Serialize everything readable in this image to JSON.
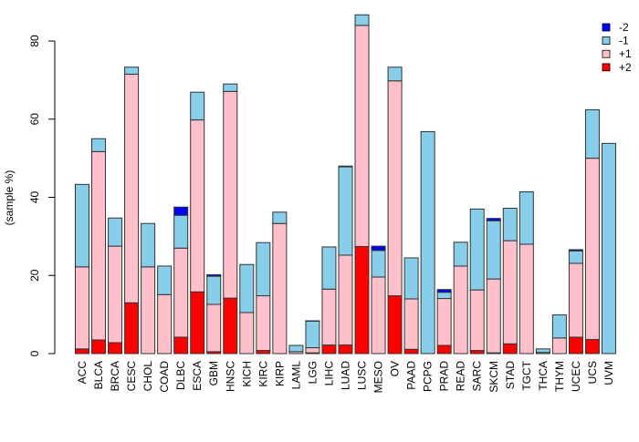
{
  "chart_data": {
    "type": "bar",
    "stacked": true,
    "title": "",
    "xlabel": "",
    "ylabel": "(sample %)",
    "ylim": [
      0,
      85
    ],
    "yticks": [
      0,
      20,
      40,
      60,
      80
    ],
    "grid": false,
    "legend_position": "top-right",
    "categories": [
      "ACC",
      "BLCA",
      "BRCA",
      "CESC",
      "CHOL",
      "COAD",
      "DLBC",
      "ESCA",
      "GBM",
      "HNSC",
      "KICH",
      "KIRC",
      "KIRP",
      "LAML",
      "LGG",
      "LIHC",
      "LUAD",
      "LUSC",
      "MESO",
      "OV",
      "PAAD",
      "PCPG",
      "PRAD",
      "READ",
      "SARC",
      "SKCM",
      "STAD",
      "TGCT",
      "THCA",
      "THYM",
      "UCEC",
      "UCS",
      "UVM"
    ],
    "series": [
      {
        "name": "+2",
        "color": "#ff0000",
        "values": [
          1.2,
          3.5,
          2.8,
          13.0,
          0,
          0,
          4.2,
          15.8,
          0.5,
          14.2,
          0,
          0.8,
          0,
          0,
          0.2,
          2.2,
          2.2,
          27.4,
          0,
          14.8,
          1.1,
          0,
          2.1,
          0,
          0.8,
          0.2,
          2.5,
          0,
          0,
          0,
          4.2,
          3.6,
          0
        ]
      },
      {
        "name": "+1",
        "color": "#ffc0cb",
        "values": [
          21.0,
          48.2,
          24.7,
          58.5,
          22.2,
          15.1,
          22.8,
          44.0,
          12.1,
          52.9,
          10.5,
          14.0,
          33.3,
          0.5,
          1.3,
          14.3,
          23.0,
          56.6,
          19.6,
          55.0,
          12.9,
          0,
          12.0,
          22.4,
          15.5,
          18.9,
          26.4,
          28.0,
          0.3,
          4.0,
          18.9,
          46.4,
          0
        ]
      },
      {
        "name": "-1",
        "color": "#87ceeb",
        "values": [
          21.1,
          3.3,
          7.2,
          1.8,
          11.1,
          7.3,
          8.4,
          7.1,
          7.2,
          1.9,
          12.3,
          13.6,
          2.9,
          1.6,
          6.8,
          10.8,
          22.6,
          2.7,
          6.8,
          3.5,
          10.5,
          56.8,
          1.6,
          6.1,
          20.7,
          14.9,
          8.3,
          13.4,
          0.9,
          5.9,
          3.2,
          12.4,
          53.8
        ]
      },
      {
        "name": "-2",
        "color": "#0000ff",
        "values": [
          0,
          0,
          0,
          0,
          0,
          0,
          2.1,
          0,
          0.4,
          0,
          0,
          0,
          0,
          0,
          0.1,
          0,
          0.2,
          0,
          1.1,
          0,
          0,
          0,
          0.7,
          0,
          0,
          0.6,
          0,
          0,
          0,
          0,
          0.3,
          0,
          0
        ]
      }
    ],
    "legend_order": [
      "-2",
      "-1",
      "+1",
      "+2"
    ]
  }
}
